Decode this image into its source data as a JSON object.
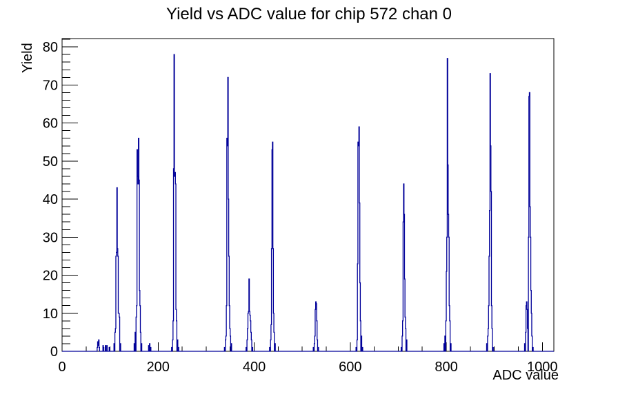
{
  "page": {
    "background": "#ffffff"
  },
  "chart_data": {
    "type": "bar",
    "subtype": "step-outline-histogram",
    "title": "Yield vs ADC value for chip 572 chan 0",
    "xlabel": "ADC value",
    "ylabel": "Yield",
    "xlim": [
      0,
      1024
    ],
    "ylim": [
      0,
      82.2
    ],
    "x_ticks": [
      0,
      200,
      400,
      600,
      800,
      1000
    ],
    "x_minor_step": 50,
    "y_ticks": [
      0,
      10,
      20,
      30,
      40,
      50,
      60,
      70,
      80
    ],
    "y_minor_step": 2,
    "grid": false,
    "legend": false,
    "line_color": "#000099",
    "axis_color": "#000000",
    "bins_adc_height": [
      [
        73,
        1
      ],
      [
        74,
        2.5
      ],
      [
        75,
        1.5
      ],
      [
        76,
        3
      ],
      [
        77,
        1
      ],
      [
        85,
        1.5
      ],
      [
        86,
        1
      ],
      [
        90,
        1.5
      ],
      [
        93,
        1.5
      ],
      [
        98,
        1
      ],
      [
        108,
        2
      ],
      [
        110,
        5
      ],
      [
        111,
        6
      ],
      [
        112,
        25
      ],
      [
        113,
        26
      ],
      [
        114,
        43
      ],
      [
        115,
        27
      ],
      [
        116,
        25
      ],
      [
        117,
        10
      ],
      [
        118,
        10
      ],
      [
        119,
        9
      ],
      [
        121,
        2
      ],
      [
        150,
        2
      ],
      [
        152,
        5
      ],
      [
        154,
        9
      ],
      [
        155,
        12
      ],
      [
        156,
        53
      ],
      [
        157,
        46
      ],
      [
        158,
        44
      ],
      [
        159,
        56
      ],
      [
        160,
        45
      ],
      [
        161,
        16
      ],
      [
        162,
        12
      ],
      [
        163,
        5
      ],
      [
        165,
        2
      ],
      [
        180,
        1.5
      ],
      [
        182,
        2
      ],
      [
        184,
        1
      ],
      [
        228,
        1
      ],
      [
        230,
        3
      ],
      [
        231,
        8
      ],
      [
        232,
        48
      ],
      [
        233,
        78
      ],
      [
        234,
        46
      ],
      [
        235,
        47
      ],
      [
        236,
        44
      ],
      [
        237,
        11
      ],
      [
        238,
        8
      ],
      [
        240,
        3
      ],
      [
        242,
        1
      ],
      [
        338,
        1
      ],
      [
        340,
        3
      ],
      [
        341,
        4
      ],
      [
        342,
        12
      ],
      [
        343,
        56
      ],
      [
        344,
        54
      ],
      [
        345,
        72
      ],
      [
        346,
        40
      ],
      [
        347,
        25
      ],
      [
        348,
        12
      ],
      [
        349,
        6
      ],
      [
        350,
        4
      ],
      [
        352,
        2
      ],
      [
        383,
        1
      ],
      [
        385,
        3
      ],
      [
        386,
        6
      ],
      [
        387,
        10
      ],
      [
        388,
        10.5
      ],
      [
        389,
        19
      ],
      [
        390,
        10.5
      ],
      [
        391,
        9.5
      ],
      [
        392,
        8
      ],
      [
        393,
        5
      ],
      [
        394,
        3
      ],
      [
        396,
        1
      ],
      [
        432,
        1
      ],
      [
        434,
        3
      ],
      [
        435,
        7
      ],
      [
        436,
        27
      ],
      [
        437,
        53
      ],
      [
        438,
        55
      ],
      [
        439,
        27
      ],
      [
        440,
        10
      ],
      [
        441,
        5
      ],
      [
        443,
        2
      ],
      [
        523,
        1
      ],
      [
        525,
        2
      ],
      [
        526,
        4
      ],
      [
        527,
        11
      ],
      [
        528,
        13
      ],
      [
        529,
        12.5
      ],
      [
        530,
        8
      ],
      [
        531,
        3
      ],
      [
        533,
        1
      ],
      [
        612,
        1
      ],
      [
        614,
        3
      ],
      [
        615,
        23
      ],
      [
        616,
        55
      ],
      [
        617,
        54
      ],
      [
        618,
        59
      ],
      [
        619,
        39
      ],
      [
        620,
        18
      ],
      [
        621,
        8
      ],
      [
        623,
        4
      ],
      [
        625,
        1
      ],
      [
        706,
        1
      ],
      [
        708,
        4
      ],
      [
        709,
        8
      ],
      [
        710,
        34
      ],
      [
        711,
        44
      ],
      [
        712,
        36
      ],
      [
        713,
        19
      ],
      [
        714,
        9
      ],
      [
        715,
        6
      ],
      [
        717,
        3
      ],
      [
        795,
        2
      ],
      [
        797,
        4
      ],
      [
        799,
        8
      ],
      [
        800,
        21
      ],
      [
        801,
        30
      ],
      [
        802,
        77
      ],
      [
        803,
        49
      ],
      [
        804,
        36
      ],
      [
        805,
        30
      ],
      [
        806,
        12
      ],
      [
        807,
        8
      ],
      [
        809,
        2
      ],
      [
        884,
        2
      ],
      [
        886,
        4
      ],
      [
        887,
        6
      ],
      [
        888,
        12
      ],
      [
        889,
        25
      ],
      [
        890,
        37
      ],
      [
        891,
        73
      ],
      [
        892,
        54
      ],
      [
        893,
        42
      ],
      [
        894,
        12
      ],
      [
        895,
        6
      ],
      [
        897,
        1
      ],
      [
        963,
        2
      ],
      [
        965,
        5
      ],
      [
        966,
        12
      ],
      [
        967,
        13
      ],
      [
        968,
        11
      ],
      [
        969,
        6
      ],
      [
        971,
        30
      ],
      [
        972,
        67
      ],
      [
        973,
        68
      ],
      [
        974,
        38
      ],
      [
        975,
        30
      ],
      [
        976,
        16
      ],
      [
        977,
        10
      ],
      [
        978,
        4
      ],
      [
        980,
        1
      ]
    ]
  }
}
